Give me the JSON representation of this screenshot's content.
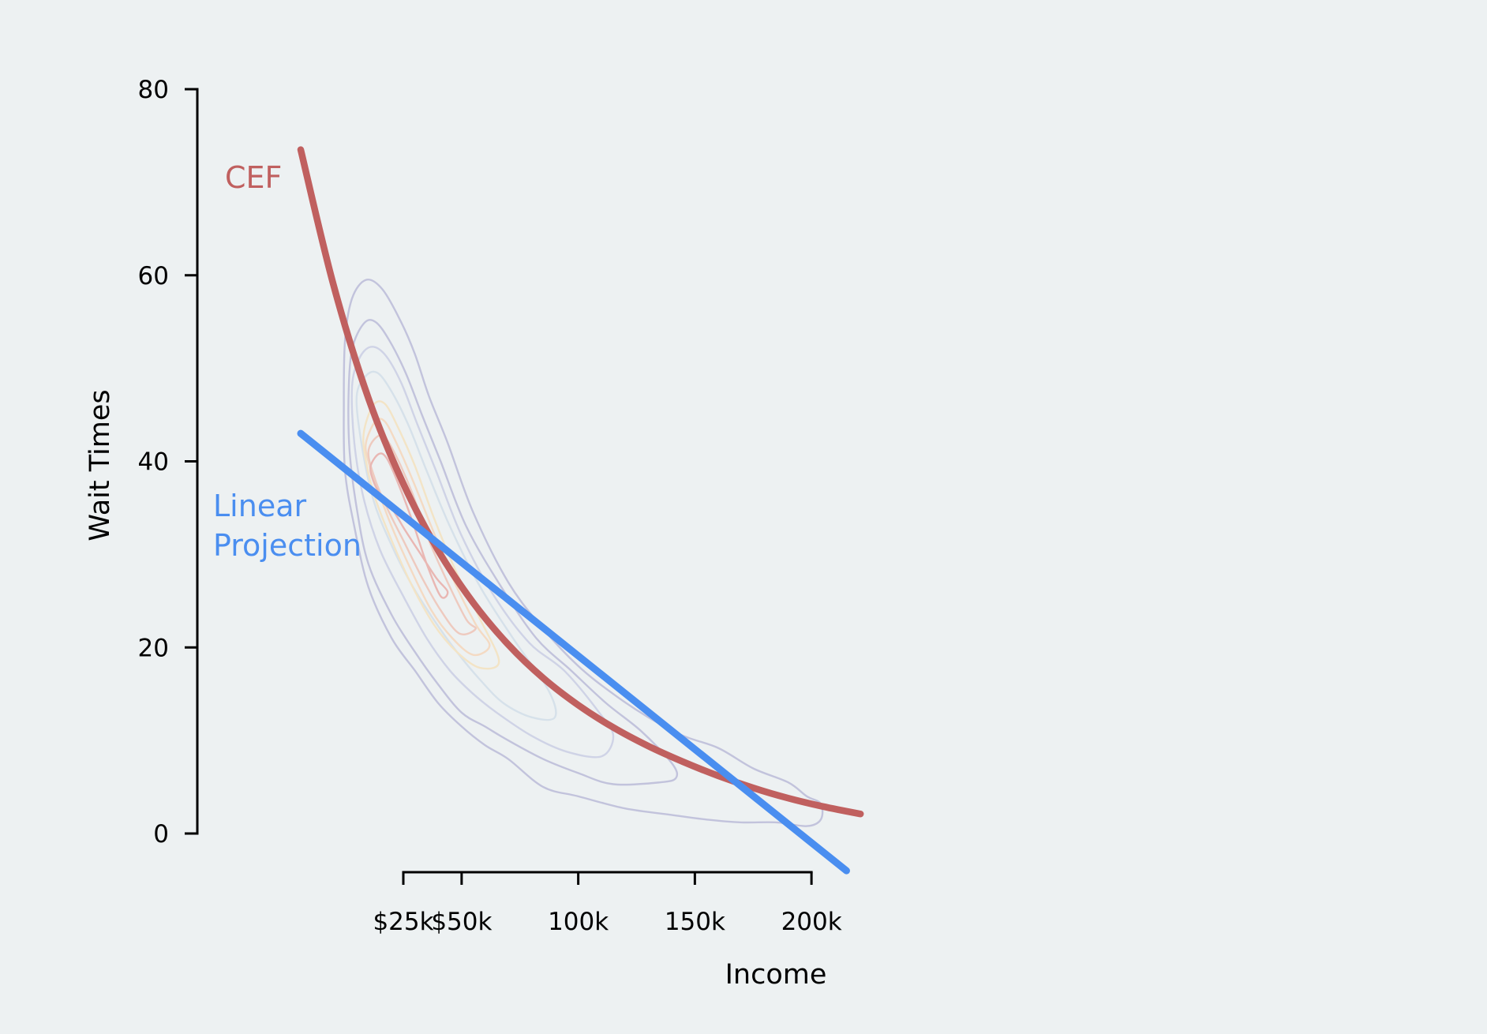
{
  "chart_data": {
    "type": "line",
    "title": "",
    "xlabel": "Income",
    "ylabel": "Wait Times",
    "xlim": [
      -19,
      221
    ],
    "ylim": [
      0,
      80
    ],
    "x_ticks": [
      {
        "value": 25,
        "label": "$25k"
      },
      {
        "value": 50,
        "label": "$50k"
      },
      {
        "value": 100,
        "label": "100k"
      },
      {
        "value": 150,
        "label": "150k"
      },
      {
        "value": 200,
        "label": "200k"
      }
    ],
    "y_ticks": [
      {
        "value": 0,
        "label": "0"
      },
      {
        "value": 20,
        "label": "20"
      },
      {
        "value": 40,
        "label": "40"
      },
      {
        "value": 60,
        "label": "60"
      },
      {
        "value": 80,
        "label": "80"
      }
    ],
    "grid": false,
    "series": [
      {
        "name": "CEF",
        "label": "CEF",
        "color": "#c0605f",
        "x": [
          -19,
          -5,
          10,
          25,
          40,
          55,
          70,
          85,
          100,
          115,
          130,
          145,
          160,
          175,
          190,
          205,
          221
        ],
        "values": [
          73.5,
          59,
          46.8,
          37.6,
          30.4,
          24.8,
          20.3,
          16.7,
          13.8,
          11.4,
          9.4,
          7.7,
          6.2,
          4.9,
          3.8,
          2.9,
          2.1
        ]
      },
      {
        "name": "Linear Projection",
        "label_lines": [
          "Linear",
          "Projection"
        ],
        "color": "#4a8ef0",
        "x": [
          -19,
          215
        ],
        "values": [
          43,
          -4
        ]
      }
    ],
    "density_contours": {
      "description": "kernel density contours of income vs wait times",
      "levels": [
        {
          "color": "#c2c3dc",
          "points": [
            [
              -0.5,
              46
            ],
            [
              0,
              53
            ],
            [
              3,
              57.5
            ],
            [
              9,
              59.5
            ],
            [
              16,
              58.5
            ],
            [
              24,
              55
            ],
            [
              30,
              51.5
            ],
            [
              36,
              47
            ],
            [
              44,
              42
            ],
            [
              55,
              34.5
            ],
            [
              70,
              27
            ],
            [
              85,
              22
            ],
            [
              100,
              18
            ],
            [
              115,
              15
            ],
            [
              130,
              12.5
            ],
            [
              145,
              10.5
            ],
            [
              160,
              9.2
            ],
            [
              175,
              7
            ],
            [
              190,
              5.5
            ],
            [
              198,
              4
            ],
            [
              204,
              3.2
            ],
            [
              204,
              1.5
            ],
            [
              198,
              0.8
            ],
            [
              185,
              1.2
            ],
            [
              170,
              1.2
            ],
            [
              155,
              1.5
            ],
            [
              140,
              2
            ],
            [
              120,
              2.7
            ],
            [
              100,
              4
            ],
            [
              85,
              5
            ],
            [
              70,
              8
            ],
            [
              60,
              9.5
            ],
            [
              50,
              11.5
            ],
            [
              40,
              14
            ],
            [
              30,
              17.5
            ],
            [
              20,
              21
            ],
            [
              10,
              26.5
            ],
            [
              4,
              33
            ],
            [
              0,
              39
            ]
          ]
        },
        {
          "color": "#c2c3dc",
          "points": [
            [
              1.5,
              47
            ],
            [
              3,
              52
            ],
            [
              8,
              54.8
            ],
            [
              13,
              55
            ],
            [
              19,
              53
            ],
            [
              26,
              49.5
            ],
            [
              33,
              45
            ],
            [
              41,
              40
            ],
            [
              52,
              33
            ],
            [
              67,
              26.5
            ],
            [
              82,
              21
            ],
            [
              97,
              17.5
            ],
            [
              112,
              14
            ],
            [
              127,
              11
            ],
            [
              140,
              7.6
            ],
            [
              142,
              6
            ],
            [
              135,
              5.5
            ],
            [
              115,
              5.3
            ],
            [
              100,
              6.5
            ],
            [
              85,
              8
            ],
            [
              70,
              10
            ],
            [
              60,
              11.5
            ],
            [
              50,
              13
            ],
            [
              40,
              16
            ],
            [
              30,
              19.5
            ],
            [
              20,
              23.5
            ],
            [
              10,
              29
            ],
            [
              5,
              35
            ],
            [
              2,
              41
            ]
          ]
        },
        {
          "color": "#cfd3e6",
          "points": [
            [
              3,
              48
            ],
            [
              6,
              51
            ],
            [
              11,
              52.3
            ],
            [
              17,
              51.5
            ],
            [
              24,
              48.5
            ],
            [
              31,
              44
            ],
            [
              39,
              39
            ],
            [
              50,
              32
            ],
            [
              64,
              25.5
            ],
            [
              79,
              20.5
            ],
            [
              94,
              17.5
            ],
            [
              109,
              13
            ],
            [
              115,
              10.5
            ],
            [
              110,
              8.3
            ],
            [
              95,
              8.8
            ],
            [
              80,
              10.5
            ],
            [
              65,
              13
            ],
            [
              55,
              15
            ],
            [
              45,
              17.5
            ],
            [
              35,
              21
            ],
            [
              25,
              25.5
            ],
            [
              15,
              30.5
            ],
            [
              8,
              36
            ],
            [
              4,
              42
            ]
          ]
        },
        {
          "color": "#d6e1ea",
          "points": [
            [
              5,
              47
            ],
            [
              9,
              49.2
            ],
            [
              14,
              49.5
            ],
            [
              20,
              47.5
            ],
            [
              27,
              44
            ],
            [
              35,
              39
            ],
            [
              45,
              33
            ],
            [
              58,
              26.5
            ],
            [
              72,
              21
            ],
            [
              87,
              15.5
            ],
            [
              90,
              12.5
            ],
            [
              80,
              12.5
            ],
            [
              68,
              14
            ],
            [
              58,
              16.5
            ],
            [
              48,
              19.5
            ],
            [
              38,
              23
            ],
            [
              28,
              27
            ],
            [
              19,
              31.5
            ],
            [
              12,
              36
            ],
            [
              7,
              42
            ]
          ]
        },
        {
          "color": "#f3e4c6",
          "points": [
            [
              8,
              43
            ],
            [
              12,
              46
            ],
            [
              17,
              46.2
            ],
            [
              23,
              43.5
            ],
            [
              30,
              39.5
            ],
            [
              38,
              34
            ],
            [
              47,
              28.5
            ],
            [
              58,
              23
            ],
            [
              66,
              18.5
            ],
            [
              58,
              17.8
            ],
            [
              48,
              19.5
            ],
            [
              38,
              22.5
            ],
            [
              28,
              27
            ],
            [
              20,
              31.5
            ],
            [
              13,
              36
            ],
            [
              9,
              40
            ]
          ]
        },
        {
          "color": "#f4dac3",
          "points": [
            [
              9,
              42
            ],
            [
              13,
              44.3
            ],
            [
              17,
              44.3
            ],
            [
              22,
              42
            ],
            [
              29,
              38
            ],
            [
              37,
              33
            ],
            [
              46,
              27.5
            ],
            [
              56,
              22.5
            ],
            [
              62,
              20.2
            ],
            [
              55,
              19.2
            ],
            [
              46,
              21
            ],
            [
              37,
              24
            ],
            [
              28,
              28.5
            ],
            [
              20,
              33
            ],
            [
              14,
              37
            ],
            [
              10,
              40
            ]
          ]
        },
        {
          "color": "#eecabf",
          "points": [
            [
              10,
              41
            ],
            [
              14,
              42.7
            ],
            [
              18,
              42.3
            ],
            [
              23,
              40
            ],
            [
              29,
              36.5
            ],
            [
              36,
              31.5
            ],
            [
              44,
              27
            ],
            [
              52,
              23
            ],
            [
              56,
              22
            ],
            [
              49,
              21.5
            ],
            [
              41,
              24
            ],
            [
              33,
              27.5
            ],
            [
              25,
              31.5
            ],
            [
              18,
              35
            ],
            [
              13,
              38
            ]
          ]
        },
        {
          "color": "#e9b7b3",
          "points": [
            [
              11,
              39.5
            ],
            [
              14.5,
              40.8
            ],
            [
              18,
              40.3
            ],
            [
              23,
              37.5
            ],
            [
              29,
              33.5
            ],
            [
              35,
              29
            ],
            [
              41,
              25.5
            ],
            [
              44,
              26
            ],
            [
              39,
              27.5
            ],
            [
              32,
              30.2
            ],
            [
              26,
              32.5
            ],
            [
              20,
              35
            ],
            [
              15,
              36.5
            ],
            [
              12,
              38
            ]
          ]
        }
      ]
    }
  }
}
